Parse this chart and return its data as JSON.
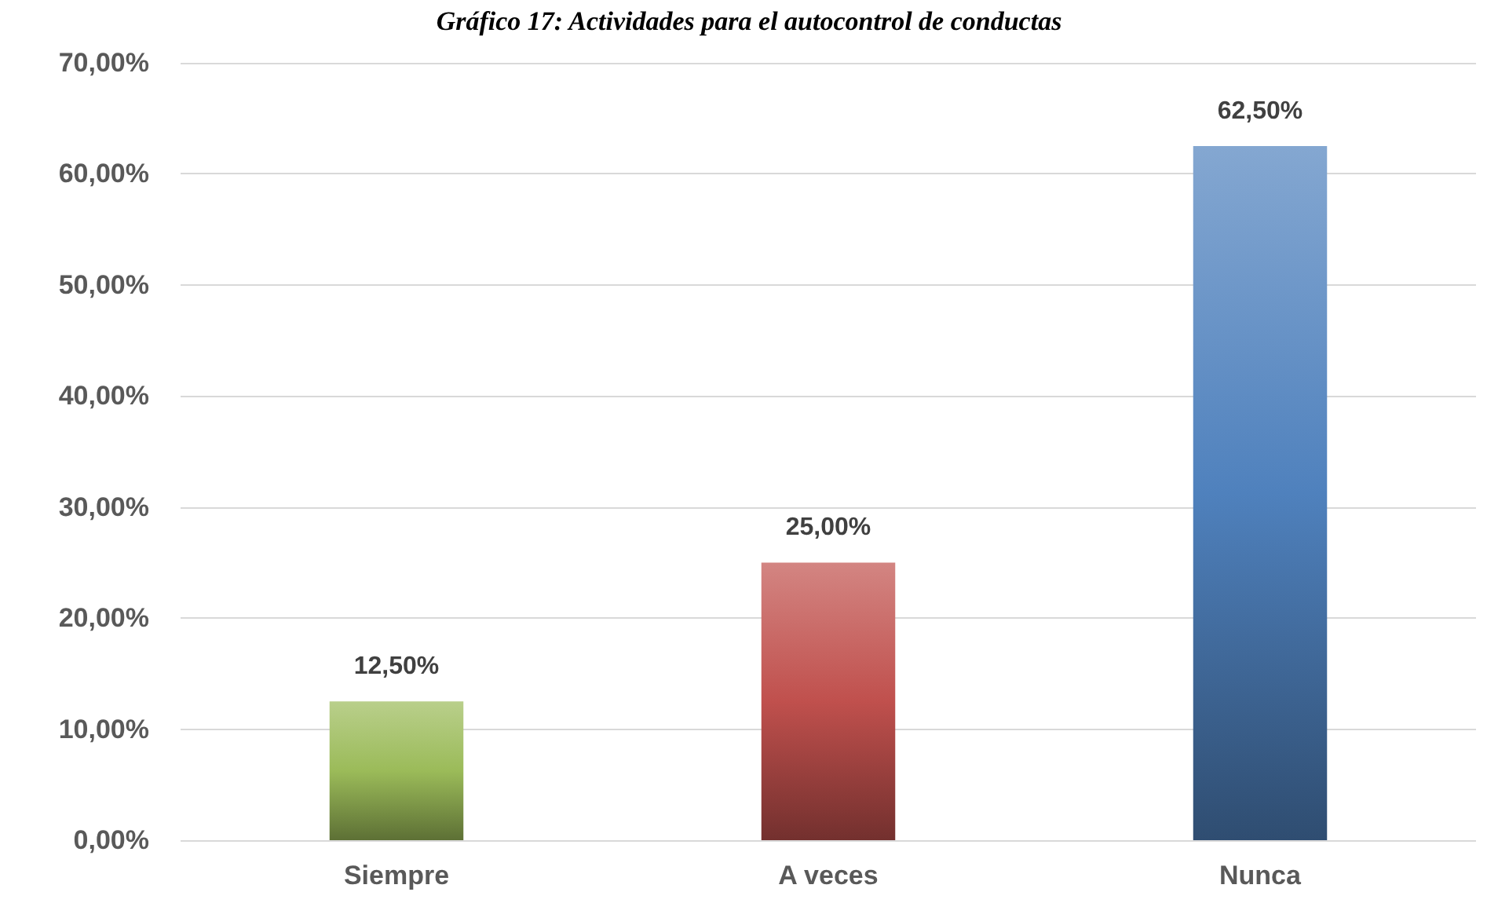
{
  "chart_data": {
    "type": "bar",
    "title": "Gráfico 17: Actividades para el autocontrol de conductas",
    "categories": [
      "Siempre",
      "A veces",
      "Nunca"
    ],
    "values": [
      12.5,
      25,
      62.5
    ],
    "colors": [
      "#9bbb59",
      "#c0504d",
      "#4f81bd"
    ],
    "value_labels": [
      "12,50%",
      "25,00%",
      "62,50%"
    ],
    "ylim": [
      0,
      70
    ],
    "yticks": [
      {
        "value": 0,
        "label": "0,00%"
      },
      {
        "value": 10,
        "label": "10,00%"
      },
      {
        "value": 20,
        "label": "20,00%"
      },
      {
        "value": 30,
        "label": "30,00%"
      },
      {
        "value": 40,
        "label": "40,00%"
      },
      {
        "value": 50,
        "label": "50,00%"
      },
      {
        "value": 60,
        "label": "60,00%"
      },
      {
        "value": 70,
        "label": "70,00%"
      }
    ],
    "grid": "y"
  }
}
